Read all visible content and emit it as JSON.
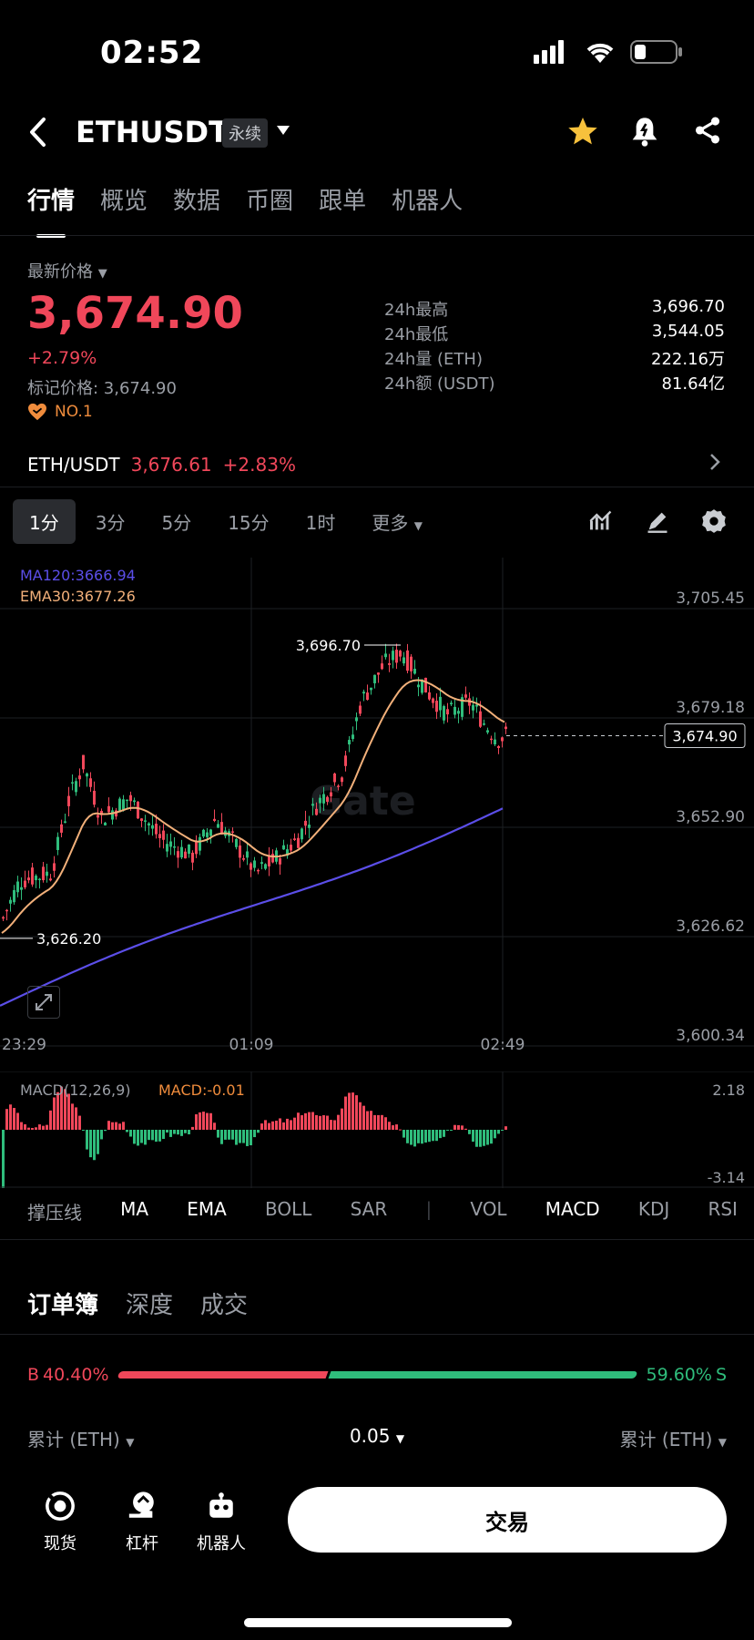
{
  "status": {
    "time": "02:52"
  },
  "nav": {
    "title": "ETHUSDT",
    "badge": "永续"
  },
  "tabs": [
    "行情",
    "概览",
    "数据",
    "币圈",
    "跟单",
    "机器人"
  ],
  "price": {
    "label": "最新价格",
    "last": "3,674.90",
    "change": "+2.79%",
    "mark": "标记价格: 3,674.90",
    "rank": "NO.1"
  },
  "stats": [
    {
      "k": "24h最高",
      "v": "3,696.70"
    },
    {
      "k": "24h最低",
      "v": "3,544.05"
    },
    {
      "k": "24h量 (ETH)",
      "v": "222.16万"
    },
    {
      "k": "24h额 (USDT)",
      "v": "81.64亿"
    }
  ],
  "spot": {
    "pair": "ETH/USDT",
    "price": "3,676.61",
    "change": "+2.83%"
  },
  "timeframes": [
    "1分",
    "3分",
    "5分",
    "15分",
    "1时",
    "更多"
  ],
  "chart": {
    "ma_label": "MA120:3666.94",
    "ema_label": "EMA30:3677.26",
    "y_ticks": [
      "3,705.45",
      "3,679.18",
      "3,652.90",
      "3,626.62",
      "3,600.34"
    ],
    "x_ticks": [
      "23:29",
      "01:09",
      "02:49"
    ],
    "high_label": "3,696.70",
    "low_label": "3,626.20",
    "current_label": "3,674.90",
    "watermark": "Gate",
    "macd_label": "MACD(12,26,9)",
    "macd_value": "MACD:-0.01",
    "macd_max": "2.18",
    "macd_min": "-3.14"
  },
  "chart_data": {
    "type": "candlestick",
    "ylim": [
      3600.34,
      3705.45
    ],
    "y_ticks": [
      3705.45,
      3679.18,
      3652.9,
      3626.62,
      3600.34
    ],
    "x_ticks": [
      "23:29",
      "01:09",
      "02:49"
    ],
    "high": 3696.7,
    "low": 3626.2,
    "last": 3674.9,
    "ma120": 3666.94,
    "ema30": 3677.26,
    "series": [
      {
        "name": "MA120"
      },
      {
        "name": "EMA30"
      }
    ],
    "macd_range": [
      -3.14,
      2.18
    ],
    "macd_value": -0.01
  },
  "indicators": [
    "撑压线",
    "MA",
    "EMA",
    "BOLL",
    "SAR",
    "VOL",
    "MACD",
    "KDJ",
    "RSI"
  ],
  "orderbook": {
    "tabs": [
      "订单簿",
      "深度",
      "成交"
    ],
    "buy_label": "B",
    "buy_pct": "40.40%",
    "sell_pct": "59.60%",
    "sell_label": "S",
    "buy_ratio": 0.404,
    "col_left": "累计 (ETH)",
    "col_mid": "0.05",
    "col_right": "累计 (ETH)"
  },
  "bottom_nav": [
    "现货",
    "杠杆",
    "机器人"
  ],
  "trade_button": "交易",
  "colors": {
    "up": "#f0475a",
    "down": "#2fbd7c",
    "ma120": "#5b4ee8",
    "ema30": "#f2b07a"
  }
}
